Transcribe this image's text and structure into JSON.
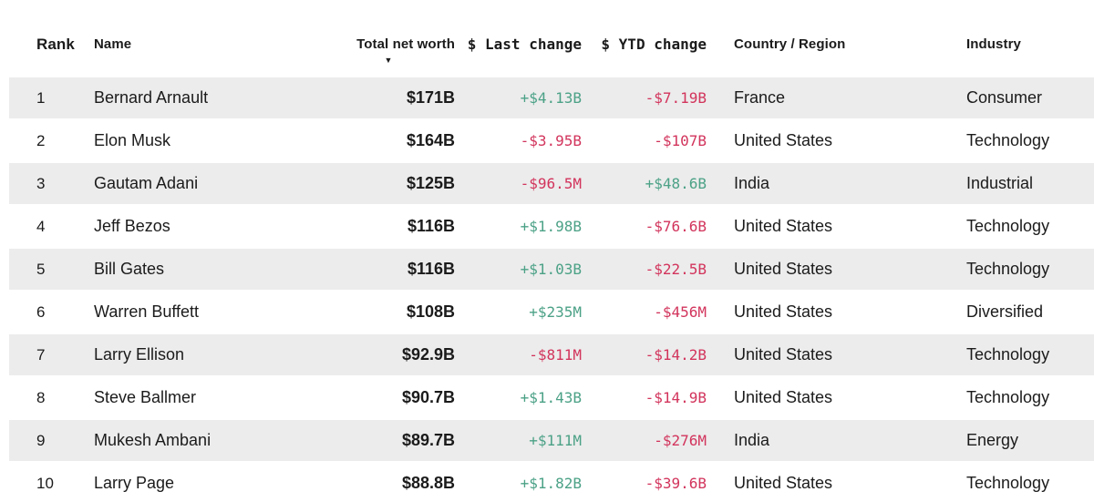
{
  "table": {
    "columns": [
      {
        "key": "rank",
        "label": "Rank",
        "align": "left"
      },
      {
        "key": "name",
        "label": "Name",
        "align": "left"
      },
      {
        "key": "net_worth",
        "label": "Total net worth",
        "align": "right",
        "sorted": "desc"
      },
      {
        "key": "last_change",
        "label": "$ Last change",
        "align": "right",
        "type": "change"
      },
      {
        "key": "ytd_change",
        "label": "$ YTD change",
        "align": "right",
        "type": "change"
      },
      {
        "key": "country",
        "label": "Country / Region",
        "align": "left"
      },
      {
        "key": "industry",
        "label": "Industry",
        "align": "left"
      }
    ],
    "sort_icon": "▼",
    "rows": [
      {
        "rank": "1",
        "name": "Bernard Arnault",
        "net_worth": "$171B",
        "last_change": "+$4.13B",
        "ytd_change": "-$7.19B",
        "country": "France",
        "industry": "Consumer"
      },
      {
        "rank": "2",
        "name": "Elon Musk",
        "net_worth": "$164B",
        "last_change": "-$3.95B",
        "ytd_change": "-$107B",
        "country": "United States",
        "industry": "Technology"
      },
      {
        "rank": "3",
        "name": "Gautam Adani",
        "net_worth": "$125B",
        "last_change": "-$96.5M",
        "ytd_change": "+$48.6B",
        "country": "India",
        "industry": "Industrial"
      },
      {
        "rank": "4",
        "name": "Jeff Bezos",
        "net_worth": "$116B",
        "last_change": "+$1.98B",
        "ytd_change": "-$76.6B",
        "country": "United States",
        "industry": "Technology"
      },
      {
        "rank": "5",
        "name": "Bill Gates",
        "net_worth": "$116B",
        "last_change": "+$1.03B",
        "ytd_change": "-$22.5B",
        "country": "United States",
        "industry": "Technology"
      },
      {
        "rank": "6",
        "name": "Warren Buffett",
        "net_worth": "$108B",
        "last_change": "+$235M",
        "ytd_change": "-$456M",
        "country": "United States",
        "industry": "Diversified"
      },
      {
        "rank": "7",
        "name": "Larry Ellison",
        "net_worth": "$92.9B",
        "last_change": "-$811M",
        "ytd_change": "-$14.2B",
        "country": "United States",
        "industry": "Technology"
      },
      {
        "rank": "8",
        "name": "Steve Ballmer",
        "net_worth": "$90.7B",
        "last_change": "+$1.43B",
        "ytd_change": "-$14.9B",
        "country": "United States",
        "industry": "Technology"
      },
      {
        "rank": "9",
        "name": "Mukesh Ambani",
        "net_worth": "$89.7B",
        "last_change": "+$111M",
        "ytd_change": "-$276M",
        "country": "India",
        "industry": "Energy"
      },
      {
        "rank": "10",
        "name": "Larry Page",
        "net_worth": "$88.8B",
        "last_change": "+$1.82B",
        "ytd_change": "-$39.6B",
        "country": "United States",
        "industry": "Technology"
      }
    ]
  },
  "colors": {
    "positive": "#4ba186",
    "negative": "#d2345c",
    "stripe": "#ececec",
    "text": "#1b1b1b"
  }
}
